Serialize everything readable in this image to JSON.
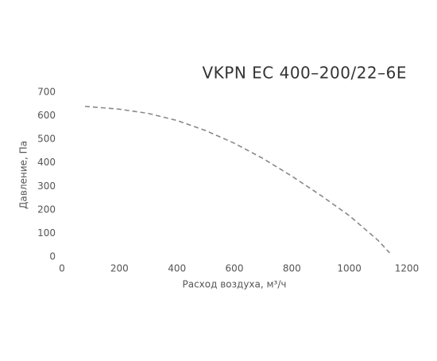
{
  "chart_data": {
    "type": "line",
    "title": "VKPN EC 400–200/22–6E",
    "x_label": "Расход воздуха, м³/ч",
    "y_label": "Давление, Па",
    "series": [
      {
        "name": "VKPN EC 400–200/22–6E",
        "color": "#888888",
        "x": [
          80,
          200,
          300,
          400,
          500,
          600,
          700,
          800,
          900,
          1000,
          1100,
          1140
        ],
        "values": [
          640,
          628,
          610,
          580,
          537,
          483,
          418,
          343,
          262,
          175,
          70,
          17
        ]
      }
    ],
    "xlim": [
      0,
      1200
    ],
    "xticks": [
      0,
      200,
      400,
      600,
      800,
      1000,
      1200
    ],
    "ylim": [
      0,
      700
    ],
    "yticks": [
      0,
      100,
      200,
      300,
      400,
      500,
      600,
      700
    ],
    "grid": false
  }
}
